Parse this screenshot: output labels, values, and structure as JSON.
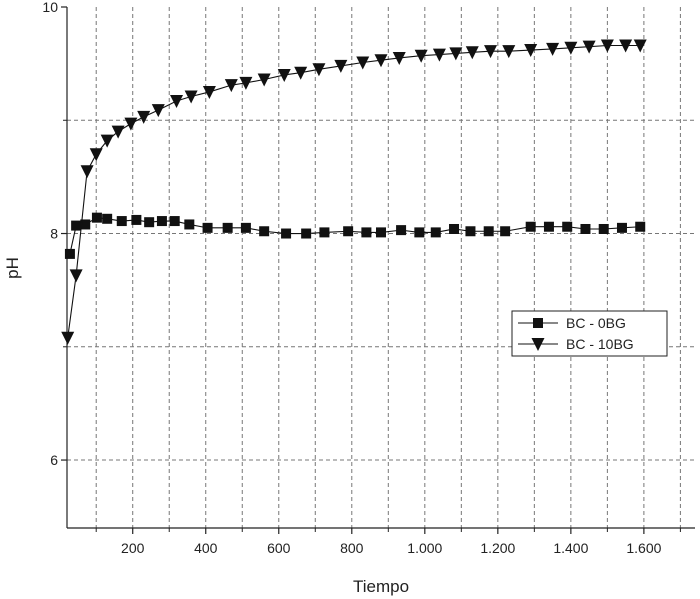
{
  "chart_data": {
    "type": "line",
    "xlabel": "Tiempo",
    "ylabel": "pH",
    "xlim": [
      20,
      1740
    ],
    "ylim": [
      5.4,
      10
    ],
    "x_ticks": [
      200,
      400,
      600,
      800,
      1000,
      1200,
      1400,
      1600
    ],
    "x_tick_labels": [
      "200",
      "400",
      "600",
      "800",
      "1.000",
      "1.200",
      "1.400",
      "1.600"
    ],
    "x_minor_ticks": [
      100,
      300,
      500,
      700,
      900,
      1100,
      1300,
      1500,
      1700
    ],
    "y_ticks": [
      6,
      8,
      10
    ],
    "y_tick_labels": [
      "6",
      "8",
      "10"
    ],
    "y_minor_ticks": [
      7,
      9
    ],
    "grid": true,
    "legend_position": "right",
    "series": [
      {
        "name": "BC - 0BG",
        "marker": "square",
        "color": "#111111",
        "points": [
          [
            28,
            7.82
          ],
          [
            45,
            8.07
          ],
          [
            70,
            8.08
          ],
          [
            102,
            8.14
          ],
          [
            130,
            8.13
          ],
          [
            170,
            8.11
          ],
          [
            210,
            8.12
          ],
          [
            245,
            8.1
          ],
          [
            280,
            8.11
          ],
          [
            315,
            8.11
          ],
          [
            355,
            8.08
          ],
          [
            405,
            8.05
          ],
          [
            460,
            8.05
          ],
          [
            510,
            8.05
          ],
          [
            560,
            8.02
          ],
          [
            620,
            8.0
          ],
          [
            675,
            8.0
          ],
          [
            725,
            8.01
          ],
          [
            790,
            8.02
          ],
          [
            840,
            8.01
          ],
          [
            880,
            8.01
          ],
          [
            935,
            8.03
          ],
          [
            985,
            8.01
          ],
          [
            1030,
            8.01
          ],
          [
            1080,
            8.04
          ],
          [
            1125,
            8.02
          ],
          [
            1175,
            8.02
          ],
          [
            1220,
            8.02
          ],
          [
            1290,
            8.06
          ],
          [
            1340,
            8.06
          ],
          [
            1390,
            8.06
          ],
          [
            1440,
            8.04
          ],
          [
            1490,
            8.04
          ],
          [
            1540,
            8.05
          ],
          [
            1590,
            8.06
          ]
        ]
      },
      {
        "name": "BC - 10BG",
        "marker": "triangle-down",
        "color": "#111111",
        "points": [
          [
            22,
            7.08
          ],
          [
            45,
            7.63
          ],
          [
            75,
            8.55
          ],
          [
            100,
            8.7
          ],
          [
            130,
            8.82
          ],
          [
            160,
            8.9
          ],
          [
            195,
            8.97
          ],
          [
            230,
            9.03
          ],
          [
            270,
            9.09
          ],
          [
            320,
            9.17
          ],
          [
            360,
            9.21
          ],
          [
            410,
            9.25
          ],
          [
            470,
            9.31
          ],
          [
            510,
            9.33
          ],
          [
            560,
            9.36
          ],
          [
            615,
            9.4
          ],
          [
            660,
            9.42
          ],
          [
            710,
            9.45
          ],
          [
            770,
            9.48
          ],
          [
            830,
            9.51
          ],
          [
            880,
            9.53
          ],
          [
            930,
            9.55
          ],
          [
            990,
            9.57
          ],
          [
            1040,
            9.58
          ],
          [
            1085,
            9.59
          ],
          [
            1130,
            9.6
          ],
          [
            1180,
            9.61
          ],
          [
            1230,
            9.61
          ],
          [
            1290,
            9.62
          ],
          [
            1350,
            9.63
          ],
          [
            1400,
            9.64
          ],
          [
            1450,
            9.65
          ],
          [
            1500,
            9.66
          ],
          [
            1550,
            9.66
          ],
          [
            1590,
            9.66
          ]
        ]
      }
    ]
  }
}
